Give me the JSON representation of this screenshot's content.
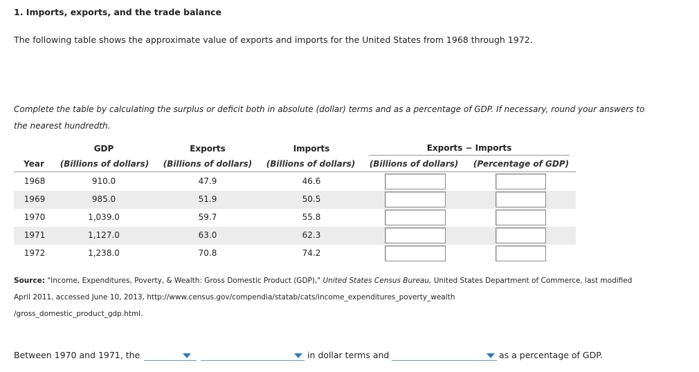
{
  "header": {
    "title": "1. Imports, exports, and the trade balance"
  },
  "intro": "The following table shows the approximate value of exports and imports for the United States from 1968 through 1972.",
  "instructions": "Complete the table by calculating the surplus or deficit both in absolute (dollar) terms and as a percentage of GDP. If necessary, round your answers to the nearest hundredth.",
  "table": {
    "group_headers": [
      "GDP",
      "Exports",
      "Imports",
      "Exports − Imports"
    ],
    "sub_headers": [
      "Year",
      "(Billions of dollars)",
      "(Billions of dollars)",
      "(Billions of dollars)",
      "(Billions of dollars)",
      "(Percentage of GDP)"
    ],
    "rows": [
      [
        "1968",
        "910.0",
        "47.9",
        "46.6"
      ],
      [
        "1969",
        "985.0",
        "51.9",
        "50.5"
      ],
      [
        "1970",
        "1,039.0",
        "59.7",
        "55.8"
      ],
      [
        "1971",
        "1,127.0",
        "63.0",
        "62.3"
      ],
      [
        "1972",
        "1,238.0",
        "70.8",
        "74.2"
      ]
    ]
  },
  "source": {
    "label": "Source:",
    "quote": "\"Income, Expenditures, Poverty, & Wealth: Gross Domestic Product (GDP),\"",
    "agency": "United States Census Bureau,",
    "rest": "United States Department of Commerce, last modified April 2011, accessed June 10, 2013, http://www.census.gov/compendia/statab/cats/income_expenditures_poverty_wealth",
    "rest2": "/gross_domestic_product_gdp.html."
  },
  "sentence": {
    "start": "Between 1970 and 1971, the",
    "middle": "in dollar terms and",
    "end": "as a percentage of GDP."
  }
}
